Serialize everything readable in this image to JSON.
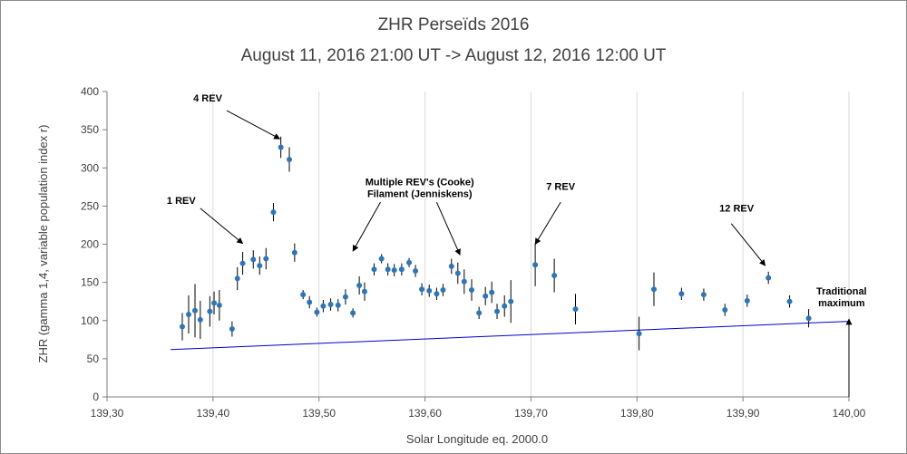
{
  "chart_data": {
    "type": "scatter",
    "title": "ZHR Perseïds 2016",
    "subtitle": "August 11, 2016 21:00 UT -> August 12, 2016 12:00 UT",
    "xlabel": "Solar Longitude eq. 2000.0",
    "ylabel": "ZHR (gamma 1,4, variable population index r)",
    "xlim": [
      139.3,
      140.0
    ],
    "ylim": [
      0,
      400
    ],
    "xticks": [
      "139,30",
      "139,40",
      "139,50",
      "139,60",
      "139,70",
      "139,80",
      "139,90",
      "140,00"
    ],
    "yticks": [
      "0",
      "50",
      "100",
      "150",
      "200",
      "250",
      "300",
      "350",
      "400"
    ],
    "grid": "vertical",
    "marker_color": "#2e75b6",
    "trend_color": "#0000cc",
    "trend_line": {
      "x": [
        139.36,
        140.0
      ],
      "y": [
        62,
        99
      ]
    },
    "points": [
      {
        "x": 139.371,
        "y": 92,
        "err": 18
      },
      {
        "x": 139.377,
        "y": 108,
        "err": 25
      },
      {
        "x": 139.383,
        "y": 113,
        "err": 35
      },
      {
        "x": 139.388,
        "y": 101,
        "err": 25
      },
      {
        "x": 139.397,
        "y": 112,
        "err": 20
      },
      {
        "x": 139.401,
        "y": 123,
        "err": 15
      },
      {
        "x": 139.406,
        "y": 120,
        "err": 20
      },
      {
        "x": 139.418,
        "y": 89,
        "err": 10
      },
      {
        "x": 139.423,
        "y": 155,
        "err": 15
      },
      {
        "x": 139.428,
        "y": 175,
        "err": 15
      },
      {
        "x": 139.438,
        "y": 180,
        "err": 12
      },
      {
        "x": 139.444,
        "y": 172,
        "err": 12
      },
      {
        "x": 139.45,
        "y": 181,
        "err": 14
      },
      {
        "x": 139.457,
        "y": 242,
        "err": 12
      },
      {
        "x": 139.464,
        "y": 327,
        "err": 14
      },
      {
        "x": 139.472,
        "y": 311,
        "err": 16
      },
      {
        "x": 139.477,
        "y": 189,
        "err": 12
      },
      {
        "x": 139.485,
        "y": 134,
        "err": 6
      },
      {
        "x": 139.491,
        "y": 124,
        "err": 8
      },
      {
        "x": 139.498,
        "y": 111,
        "err": 6
      },
      {
        "x": 139.504,
        "y": 119,
        "err": 8
      },
      {
        "x": 139.511,
        "y": 121,
        "err": 8
      },
      {
        "x": 139.518,
        "y": 120,
        "err": 8
      },
      {
        "x": 139.525,
        "y": 131,
        "err": 10
      },
      {
        "x": 139.532,
        "y": 110,
        "err": 6
      },
      {
        "x": 139.538,
        "y": 146,
        "err": 12
      },
      {
        "x": 139.543,
        "y": 138,
        "err": 12
      },
      {
        "x": 139.552,
        "y": 167,
        "err": 8
      },
      {
        "x": 139.559,
        "y": 181,
        "err": 6
      },
      {
        "x": 139.565,
        "y": 167,
        "err": 8
      },
      {
        "x": 139.571,
        "y": 166,
        "err": 8
      },
      {
        "x": 139.578,
        "y": 167,
        "err": 8
      },
      {
        "x": 139.585,
        "y": 176,
        "err": 6
      },
      {
        "x": 139.591,
        "y": 165,
        "err": 8
      },
      {
        "x": 139.597,
        "y": 141,
        "err": 8
      },
      {
        "x": 139.604,
        "y": 139,
        "err": 8
      },
      {
        "x": 139.611,
        "y": 135,
        "err": 8
      },
      {
        "x": 139.617,
        "y": 140,
        "err": 8
      },
      {
        "x": 139.625,
        "y": 171,
        "err": 10
      },
      {
        "x": 139.631,
        "y": 162,
        "err": 14
      },
      {
        "x": 139.637,
        "y": 151,
        "err": 16
      },
      {
        "x": 139.644,
        "y": 140,
        "err": 14
      },
      {
        "x": 139.651,
        "y": 110,
        "err": 8
      },
      {
        "x": 139.657,
        "y": 132,
        "err": 12
      },
      {
        "x": 139.663,
        "y": 137,
        "err": 14
      },
      {
        "x": 139.668,
        "y": 112,
        "err": 10
      },
      {
        "x": 139.675,
        "y": 119,
        "err": 14
      },
      {
        "x": 139.681,
        "y": 125,
        "err": 28
      },
      {
        "x": 139.704,
        "y": 173,
        "err": 28
      },
      {
        "x": 139.722,
        "y": 159,
        "err": 22
      },
      {
        "x": 139.742,
        "y": 115,
        "err": 20
      },
      {
        "x": 139.802,
        "y": 83,
        "err": 22
      },
      {
        "x": 139.816,
        "y": 141,
        "err": 22
      },
      {
        "x": 139.842,
        "y": 135,
        "err": 8
      },
      {
        "x": 139.863,
        "y": 134,
        "err": 8
      },
      {
        "x": 139.883,
        "y": 114,
        "err": 8
      },
      {
        "x": 139.904,
        "y": 126,
        "err": 8
      },
      {
        "x": 139.924,
        "y": 156,
        "err": 8
      },
      {
        "x": 139.944,
        "y": 125,
        "err": 8
      },
      {
        "x": 139.962,
        "y": 103,
        "err": 12
      }
    ],
    "annotations": [
      {
        "lines": [
          "4 REV"
        ],
        "tx": 139.395,
        "ty": 387,
        "ax1": 139.413,
        "ay1": 375,
        "ax2": 139.463,
        "ay2": 338
      },
      {
        "lines": [
          "1 REV"
        ],
        "tx": 139.37,
        "ty": 253,
        "ax1": 139.388,
        "ay1": 247,
        "ax2": 139.428,
        "ay2": 201
      },
      {
        "lines": [
          "Multiple REV's (Cooke)",
          "Filament (Jenniskens)"
        ],
        "tx": 139.595,
        "ty": 277,
        "ax1": 139.558,
        "ay1": 255,
        "ax2": 139.532,
        "ay2": 191
      },
      {
        "lines": [],
        "tx": 0,
        "ty": 0,
        "ax1": 139.611,
        "ay1": 255,
        "ax2": 139.633,
        "ay2": 186
      },
      {
        "lines": [
          "7 REV"
        ],
        "tx": 139.728,
        "ty": 271,
        "ax1": 139.728,
        "ay1": 255,
        "ax2": 139.704,
        "ay2": 200
      },
      {
        "lines": [
          "12 REV"
        ],
        "tx": 139.894,
        "ty": 243,
        "ax1": 139.889,
        "ay1": 227,
        "ax2": 139.921,
        "ay2": 172
      },
      {
        "lines": [
          "Traditional",
          "maximum"
        ],
        "tx": 139.993,
        "ty": 134,
        "ax1": 140.0,
        "ay1": 0,
        "ax2": 140.0,
        "ay2": 102
      }
    ]
  }
}
